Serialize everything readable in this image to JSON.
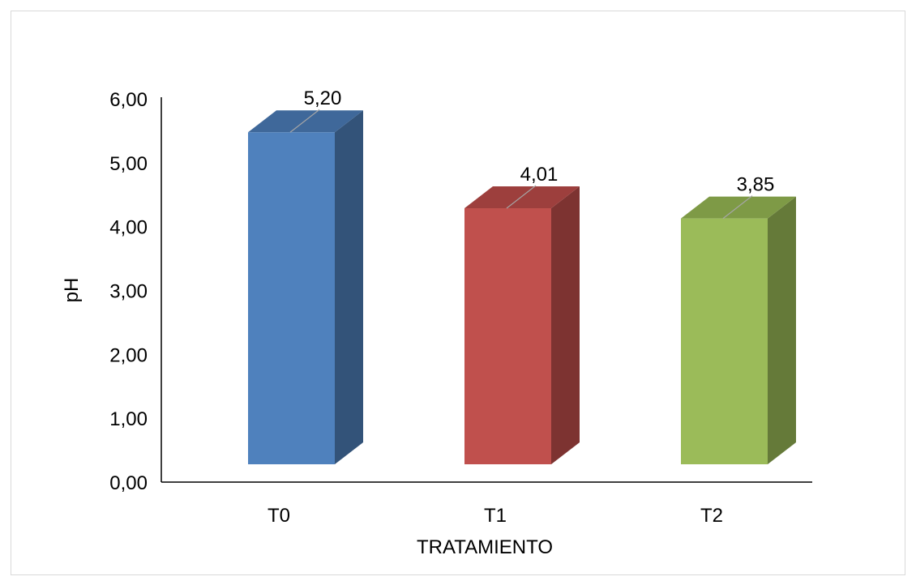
{
  "chart_data": {
    "type": "bar",
    "categories": [
      "T0",
      "T1",
      "T2"
    ],
    "values": [
      5.2,
      4.01,
      3.85
    ],
    "value_labels": [
      "5,20",
      "4,01",
      "3,85"
    ],
    "xlabel": "TRATAMIENTO",
    "ylabel": "pH",
    "ylim": [
      0,
      6
    ],
    "yticks": [
      0,
      1,
      2,
      3,
      4,
      5,
      6
    ],
    "ytick_labels": [
      "0,00",
      "1,00",
      "2,00",
      "3,00",
      "4,00",
      "5,00",
      "6,00"
    ],
    "grid": false,
    "legend": "none",
    "style": "3d-column",
    "colors": {
      "T0": {
        "front": "#4f81bd",
        "side": "#335379",
        "top": "#3f689a"
      },
      "T1": {
        "front": "#c0504d",
        "side": "#7d3331",
        "top": "#9d3f3d"
      },
      "T2": {
        "front": "#9bbb59",
        "side": "#657a39",
        "top": "#7e9a46"
      }
    }
  }
}
